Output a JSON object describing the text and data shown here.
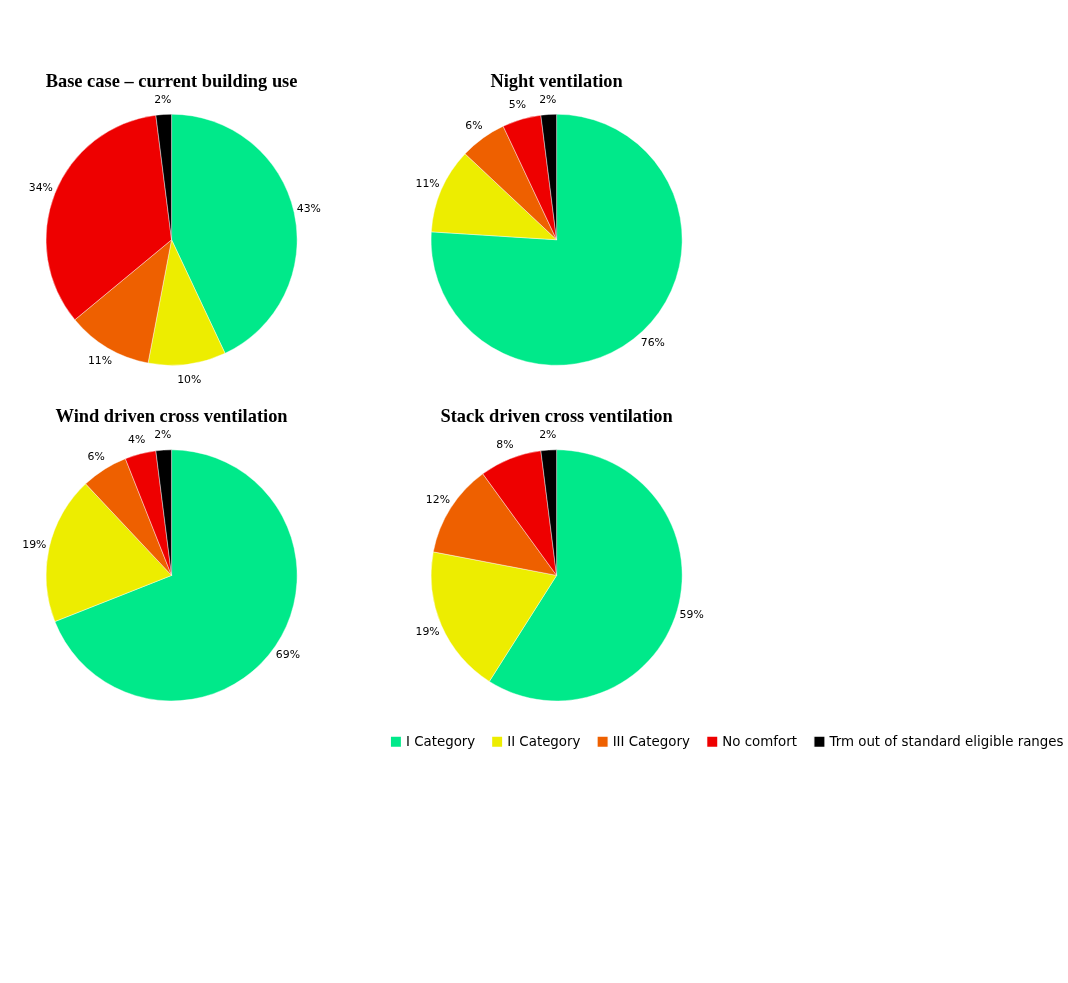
{
  "chart_data": [
    {
      "type": "pie",
      "title": "Base case – current building use",
      "categories": [
        null,
        null,
        null,
        null,
        null
      ],
      "values": [
        43,
        10,
        11,
        34,
        2
      ],
      "value_labels": [
        "43%",
        "10%",
        "11%",
        "34%",
        "2%"
      ],
      "colors": [
        "#00e98a",
        "#eded00",
        "#ee6000",
        "#ee0000",
        "#000000"
      ]
    },
    {
      "type": "pie",
      "title": "Night ventilation",
      "categories": [
        null,
        null,
        null,
        null,
        null
      ],
      "values": [
        76,
        11,
        6,
        5,
        2
      ],
      "value_labels": [
        "76%",
        "11%",
        "6%",
        "5%",
        "2%"
      ],
      "colors": [
        "#00e98a",
        "#eded00",
        "#ee6000",
        "#ee0000",
        "#000000"
      ]
    },
    {
      "type": "pie",
      "title": "Wind driven cross ventilation",
      "categories": [
        null,
        null,
        null,
        null,
        null
      ],
      "values": [
        69,
        19,
        6,
        4,
        2
      ],
      "value_labels": [
        "69%",
        "19%",
        "6%",
        "4%",
        "2%"
      ],
      "colors": [
        "#00e98a",
        "#eded00",
        "#ee6000",
        "#ee0000",
        "#000000"
      ]
    },
    {
      "type": "pie",
      "title": "Stack driven cross ventilation",
      "categories": [
        "I Category",
        "II Category",
        "III Category",
        "No comfort",
        "Trm out of standard eligible ranges"
      ],
      "values": [
        59,
        19,
        12,
        8,
        2
      ],
      "value_labels": [
        "59%",
        "19%",
        "12%",
        "8%",
        "2%"
      ],
      "colors": [
        "#00e98a",
        "#eded00",
        "#ee6000",
        "#ee0000",
        "#000000"
      ],
      "legend": "bottom"
    }
  ]
}
